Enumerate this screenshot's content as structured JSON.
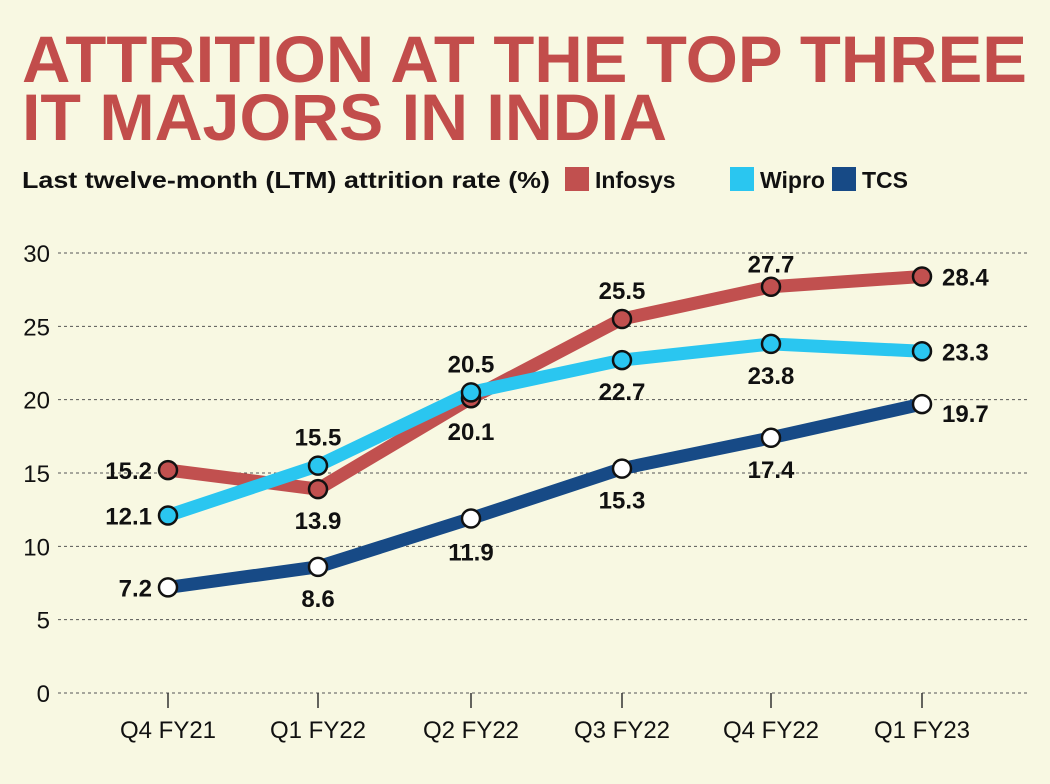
{
  "title_lines": [
    "ATTRITION AT THE TOP THREE",
    "IT MAJORS IN INDIA"
  ],
  "colors": {
    "background": "#f8f8e2",
    "title": "#c24d4b",
    "Infosys": "#c1504f",
    "Wipro": "#2ac6f0",
    "TCS": "#174a86"
  },
  "chart_data": {
    "type": "line",
    "title": "ATTRITION AT THE TOP THREE IT MAJORS IN INDIA",
    "subtitle": "Last twelve-month (LTM) attrition rate (%)",
    "categories": [
      "Q4 FY21",
      "Q1 FY22",
      "Q2 FY22",
      "Q3 FY22",
      "Q4 FY22",
      "Q1 FY23"
    ],
    "yticks": [
      0,
      5,
      10,
      15,
      20,
      25,
      30
    ],
    "ylim": [
      0,
      30
    ],
    "grid": true,
    "legend_placement": "top",
    "series": [
      {
        "name": "Infosys",
        "values": [
          15.2,
          13.9,
          20.1,
          25.5,
          27.7,
          28.4
        ],
        "labels": [
          "15.2",
          "13.9",
          "20.1",
          "25.5",
          "27.7",
          "28.4"
        ]
      },
      {
        "name": "Wipro",
        "values": [
          12.1,
          15.5,
          20.5,
          22.7,
          23.8,
          23.3
        ],
        "labels": [
          "12.1",
          "15.5",
          "20.5",
          "22.7",
          "23.8",
          "23.3"
        ]
      },
      {
        "name": "TCS",
        "values": [
          7.2,
          8.6,
          11.9,
          15.3,
          17.4,
          19.7
        ],
        "labels": [
          "7.2",
          "8.6",
          "11.9",
          "15.3",
          "17.4",
          "19.7"
        ]
      }
    ]
  }
}
